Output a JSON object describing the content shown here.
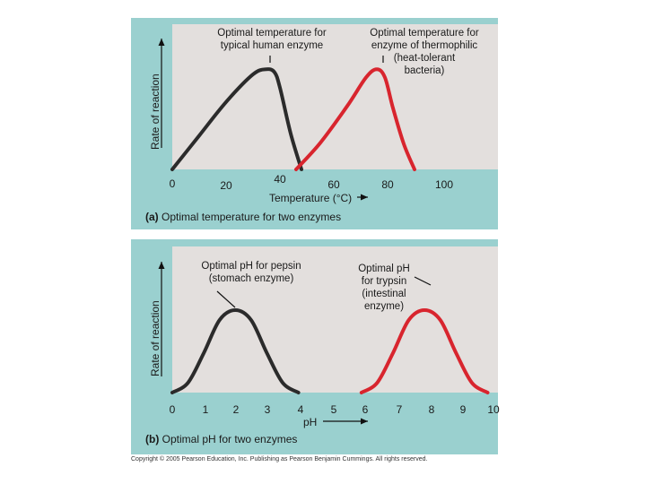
{
  "chart_data": [
    {
      "type": "line",
      "panel_label": "(a)",
      "caption": "Optimal temperature for two enzymes",
      "xlabel": "Temperature (°C)",
      "ylabel": "Rate of reaction",
      "xlim": [
        0,
        110
      ],
      "xticks": [
        "0",
        "20",
        "40",
        "60",
        "80",
        "100"
      ],
      "series": [
        {
          "color": "#2b2b2b",
          "x": [
            0,
            10,
            20,
            30,
            35,
            38,
            40,
            44,
            48
          ],
          "y": [
            0,
            0.33,
            0.66,
            0.93,
            0.98,
            0.95,
            0.8,
            0.35,
            0
          ]
        },
        {
          "color": "#d8252e",
          "x": [
            46,
            55,
            65,
            72,
            76,
            79,
            82,
            86,
            90
          ],
          "y": [
            0,
            0.26,
            0.62,
            0.9,
            0.98,
            0.9,
            0.6,
            0.25,
            0
          ]
        }
      ],
      "annotations": [
        {
          "text": "Optimal temperature for\ntypical human enzyme",
          "x": 37
        },
        {
          "text": "Optimal temperature for\nenzyme of thermophilic\n(heat-tolerant\nbacteria)",
          "x": 77
        }
      ]
    },
    {
      "type": "line",
      "panel_label": "(b)",
      "caption": "Optimal pH for two enzymes",
      "xlabel": "pH",
      "ylabel": "Rate of reaction",
      "xlim": [
        0,
        10.3
      ],
      "xticks": [
        "0",
        "1",
        "2",
        "3",
        "4",
        "5",
        "6",
        "7",
        "8",
        "9",
        "10"
      ],
      "series": [
        {
          "color": "#2b2b2b",
          "x": [
            0,
            0.5,
            1,
            1.5,
            2,
            2.5,
            3,
            3.5,
            4
          ],
          "y": [
            0,
            0.12,
            0.48,
            0.88,
            1,
            0.88,
            0.48,
            0.12,
            0
          ]
        },
        {
          "color": "#d8252e",
          "x": [
            6,
            6.5,
            7,
            7.5,
            8,
            8.5,
            9,
            9.5,
            10
          ],
          "y": [
            0,
            0.12,
            0.48,
            0.88,
            1,
            0.88,
            0.48,
            0.12,
            0
          ]
        }
      ],
      "annotations": [
        {
          "text": "Optimal pH for pepsin\n(stomach enzyme)",
          "x": 2
        },
        {
          "text": "Optimal pH\nfor trypsin\n(intestinal\nenzyme)",
          "x": 8
        }
      ]
    }
  ],
  "copyright": "Copyright © 2005 Pearson Education, Inc. Publishing as Pearson Benjamin Cummings. All rights reserved."
}
